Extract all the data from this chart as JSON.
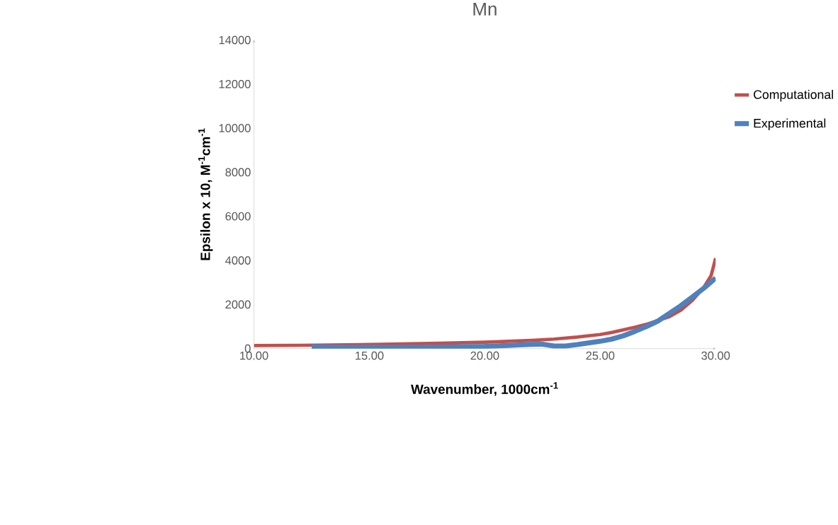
{
  "chart_data": {
    "type": "line",
    "title": "Mn",
    "xlabel": "Wavenumber, 1000cm$^{-1}$",
    "ylabel": "Epsilon x 10, M$^{-1}$cm$^{-1}$",
    "xlim": [
      10,
      30
    ],
    "ylim": [
      0,
      14000
    ],
    "xticks": [
      {
        "value": 10,
        "label": "10.00"
      },
      {
        "value": 15,
        "label": "15.00"
      },
      {
        "value": 20,
        "label": "20.00"
      },
      {
        "value": 25,
        "label": "25.00"
      },
      {
        "value": 30,
        "label": "30.00"
      }
    ],
    "yticks": [
      0,
      2000,
      4000,
      6000,
      8000,
      10000,
      12000,
      14000
    ],
    "grid": false,
    "legend": "right",
    "marker": "none",
    "line_style": "solid",
    "series": [
      {
        "name": "Computational",
        "color": "#c0504d",
        "x": [
          10,
          12,
          14,
          16,
          18,
          20,
          21,
          22,
          23,
          24,
          25,
          25.5,
          26,
          26.5,
          27,
          27.5,
          28,
          28.5,
          29,
          29.5,
          29.8,
          30
        ],
        "values": [
          140,
          150,
          170,
          200,
          240,
          290,
          330,
          370,
          430,
          520,
          640,
          730,
          850,
          970,
          1100,
          null,
          1450,
          1750,
          2200,
          2800,
          3300,
          4100
        ]
      },
      {
        "name": "Experimental",
        "color": "#4f81bd",
        "x": [
          12.5,
          14,
          16,
          18,
          20,
          21,
          22,
          22.5,
          23,
          23.5,
          24,
          25,
          25.5,
          26,
          26.5,
          27,
          27.5,
          28,
          28.5,
          29,
          29.5,
          30
        ],
        "values": [
          80,
          60,
          60,
          70,
          100,
          140,
          190,
          200,
          120,
          120,
          180,
          330,
          430,
          580,
          780,
          1000,
          1250,
          1600,
          1950,
          2350,
          2750,
          3200
        ]
      }
    ]
  }
}
